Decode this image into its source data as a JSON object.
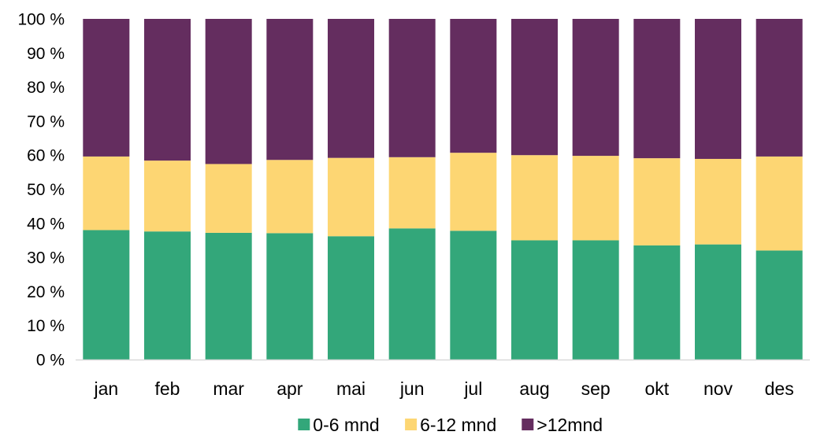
{
  "chart_data": {
    "type": "bar",
    "stacked": true,
    "percent": true,
    "title": "",
    "xlabel": "",
    "ylabel": "",
    "ylim": [
      0,
      100
    ],
    "y_ticks": [
      "0 %",
      "10 %",
      "20 %",
      "30 %",
      "40 %",
      "50 %",
      "60 %",
      "70 %",
      "80 %",
      "90 %",
      "100 %"
    ],
    "categories": [
      "jan",
      "feb",
      "mar",
      "apr",
      "mai",
      "jun",
      "jul",
      "aug",
      "sep",
      "okt",
      "nov",
      "des"
    ],
    "series": [
      {
        "name": "0-6 mnd",
        "color": "#33A77A",
        "values": [
          38,
          37.6,
          37.2,
          37.1,
          36.2,
          38.5,
          37.8,
          35,
          35,
          33.5,
          33.8,
          32
        ]
      },
      {
        "name": "6-12 mnd",
        "color": "#FDD673",
        "values": [
          21.6,
          20.8,
          20.2,
          21.5,
          23,
          20.9,
          22.9,
          25,
          24.8,
          25.6,
          25.1,
          27.6
        ]
      },
      {
        "name": ">12mnd",
        "color": "#642D5F",
        "values": [
          40.4,
          41.6,
          42.6,
          41.4,
          40.8,
          40.6,
          39.3,
          40,
          40.2,
          40.9,
          41.1,
          40.4
        ]
      }
    ],
    "grid": false,
    "legend_position": "bottom"
  }
}
